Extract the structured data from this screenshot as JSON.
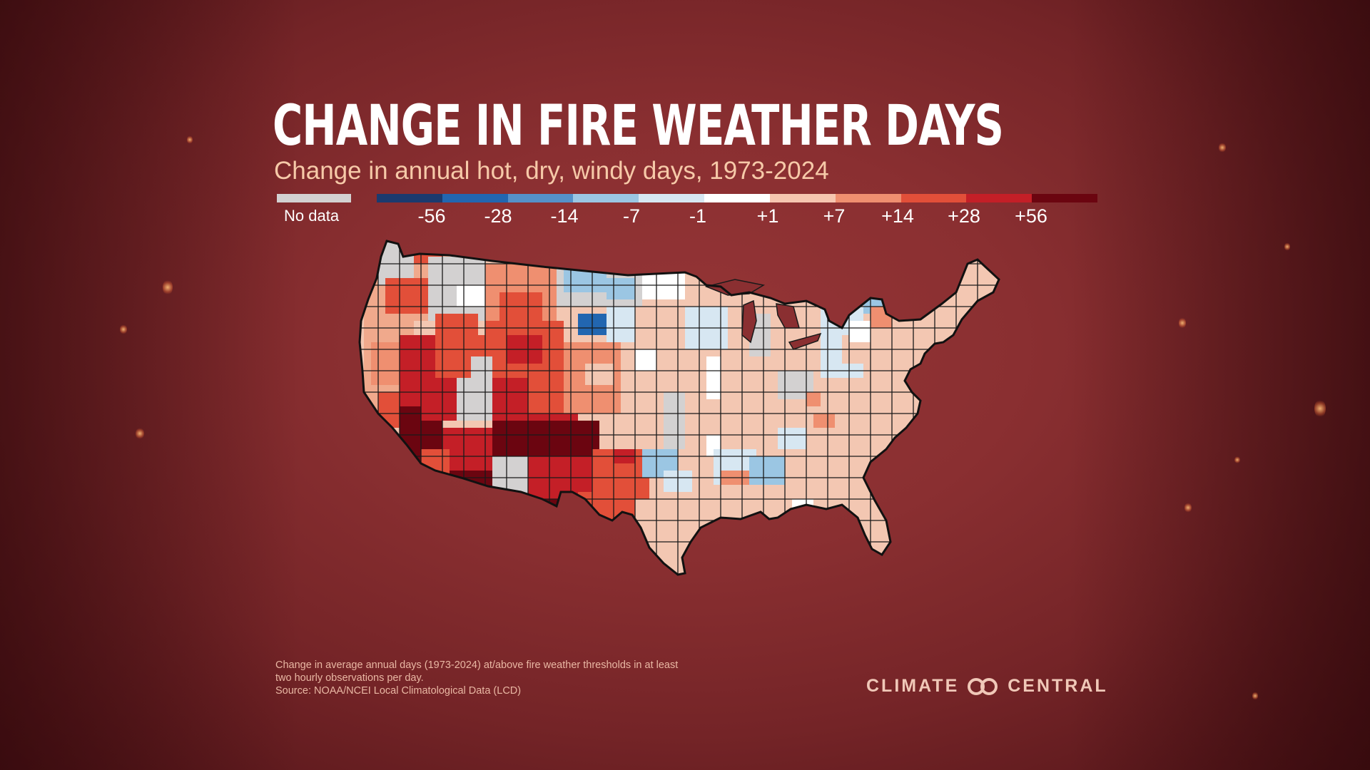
{
  "title": "CHANGE IN FIRE WEATHER DAYS",
  "subtitle": "Change in annual hot, dry, windy days, 1973-2024",
  "legend": {
    "no_data_label": "No data",
    "no_data_color": "#d3d1d1",
    "colors": [
      "#1b3a6e",
      "#2266b0",
      "#5591c9",
      "#9bc6e3",
      "#d7e7f2",
      "#ffffff",
      "#f6c6b0",
      "#ef8f70",
      "#e24f39",
      "#c41f27",
      "#6b0510"
    ],
    "ticks": [
      "-56",
      "-28",
      "-14",
      "-7",
      "-1",
      "+1",
      "+7",
      "+14",
      "+28",
      "+56"
    ]
  },
  "footnote": {
    "line1": "Change in average annual days (1973-2024) at/above fire weather thresholds in at least",
    "line2": "two hourly observations per day.",
    "source": "Source: NOAA/NCEI Local Climatological Data (LCD)"
  },
  "logo": {
    "left_text": "CLIMATE",
    "right_text": "CENTRAL",
    "icon": "climate-central-rings-icon"
  }
}
